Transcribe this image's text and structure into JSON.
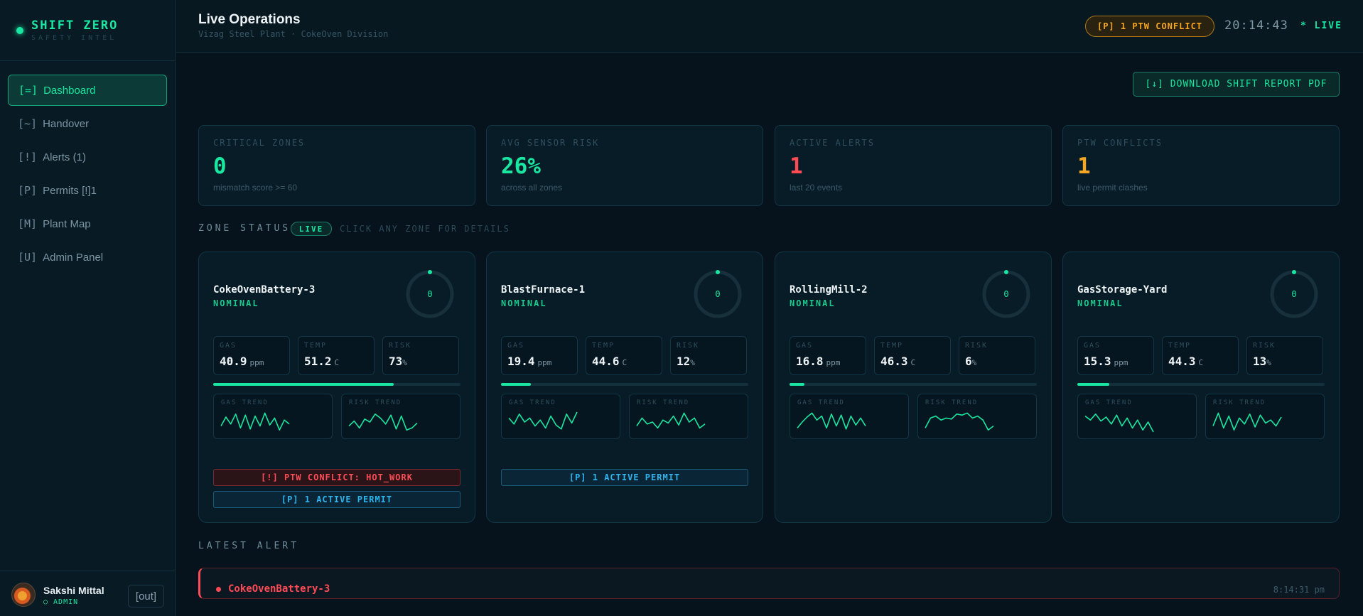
{
  "brand": {
    "title": "SHIFT ZERO",
    "subtitle": "SAFETY INTEL"
  },
  "sidebar": {
    "items": [
      {
        "icon": "[=]",
        "label": "Dashboard",
        "active": true
      },
      {
        "icon": "[~]",
        "label": "Handover"
      },
      {
        "icon": "[!]",
        "label": "Alerts (1)"
      },
      {
        "icon": "[P]",
        "label": "Permits [!]1"
      },
      {
        "icon": "[M]",
        "label": "Plant Map"
      },
      {
        "icon": "[U]",
        "label": "Admin Panel"
      }
    ]
  },
  "user": {
    "name": "Sakshi Mittal",
    "role": "○ ADMIN",
    "logout": "[out]"
  },
  "header": {
    "title": "Live Operations",
    "subtitle": "Vizag Steel Plant · CokeOven Division",
    "conflict_pill": "[P] 1 PTW CONFLICT",
    "clock": "20:14:43",
    "live": "* LIVE"
  },
  "download_label": "[↓] DOWNLOAD SHIFT REPORT PDF",
  "stats": [
    {
      "label": "CRITICAL ZONES",
      "value": "0",
      "note": "mismatch score >= 60",
      "color": "#19e6a0"
    },
    {
      "label": "AVG SENSOR RISK",
      "value": "26%",
      "note": "across all zones",
      "color": "#19e6a0"
    },
    {
      "label": "ACTIVE ALERTS",
      "value": "1",
      "note": "last 20 events",
      "color": "#ff4b55"
    },
    {
      "label": "PTW CONFLICTS",
      "value": "1",
      "note": "live permit clashes",
      "color": "#f5a623"
    }
  ],
  "zone_section": {
    "title": "ZONE STATUS",
    "badge": "LIVE",
    "hint": "CLICK ANY ZONE FOR DETAILS"
  },
  "metric_labels": {
    "gas": "GAS",
    "temp": "TEMP",
    "risk": "RISK",
    "gas_trend": "GAS TREND",
    "risk_trend": "RISK TREND"
  },
  "zones": [
    {
      "name": "CokeOvenBattery-3",
      "status": "NOMINAL",
      "score": "0",
      "gas": "40.9",
      "gas_unit": "ppm",
      "temp": "51.2",
      "temp_unit": "C",
      "risk": "73",
      "risk_unit": "%",
      "risk_fraction": 0.73,
      "gas_trend": [
        0.3,
        0.75,
        0.4,
        0.9,
        0.2,
        0.85,
        0.15,
        0.8,
        0.3,
        0.95,
        0.35,
        0.7,
        0.1,
        0.6,
        0.4
      ],
      "risk_trend": [
        0.3,
        0.55,
        0.2,
        0.65,
        0.5,
        0.9,
        0.7,
        0.4,
        0.85,
        0.15,
        0.8,
        0.1,
        0.2,
        0.45
      ],
      "tags": [
        {
          "text": "[!] PTW CONFLICT: HOT_WORK",
          "kind": "red"
        },
        {
          "text": "[P] 1 ACTIVE PERMIT",
          "kind": "blue"
        }
      ]
    },
    {
      "name": "BlastFurnace-1",
      "status": "NOMINAL",
      "score": "0",
      "gas": "19.4",
      "gas_unit": "ppm",
      "temp": "44.6",
      "temp_unit": "C",
      "risk": "12",
      "risk_unit": "%",
      "risk_fraction": 0.12,
      "gas_trend": [
        0.7,
        0.4,
        0.9,
        0.5,
        0.7,
        0.3,
        0.6,
        0.2,
        0.8,
        0.35,
        0.15,
        0.9,
        0.45,
        1.0
      ],
      "risk_trend": [
        0.3,
        0.7,
        0.4,
        0.5,
        0.2,
        0.6,
        0.45,
        0.8,
        0.35,
        0.95,
        0.5,
        0.7,
        0.2,
        0.4
      ],
      "tags": [
        {
          "text": "[P] 1 ACTIVE PERMIT",
          "kind": "blue"
        }
      ]
    },
    {
      "name": "RollingMill-2",
      "status": "NOMINAL",
      "score": "0",
      "gas": "16.8",
      "gas_unit": "ppm",
      "temp": "46.3",
      "temp_unit": "C",
      "risk": "6",
      "risk_unit": "%",
      "risk_fraction": 0.06,
      "gas_trend": [
        0.2,
        0.5,
        0.75,
        0.95,
        0.6,
        0.8,
        0.2,
        0.9,
        0.3,
        0.85,
        0.15,
        0.8,
        0.35,
        0.7,
        0.3
      ],
      "risk_trend": [
        0.2,
        0.7,
        0.8,
        0.6,
        0.7,
        0.65,
        0.9,
        0.85,
        0.95,
        0.7,
        0.8,
        0.6,
        0.1,
        0.3
      ],
      "tags": []
    },
    {
      "name": "GasStorage-Yard",
      "status": "NOMINAL",
      "score": "0",
      "gas": "15.3",
      "gas_unit": "ppm",
      "temp": "44.3",
      "temp_unit": "C",
      "risk": "13",
      "risk_unit": "%",
      "risk_fraction": 0.13,
      "gas_trend": [
        0.8,
        0.6,
        0.9,
        0.55,
        0.75,
        0.4,
        0.85,
        0.3,
        0.7,
        0.2,
        0.6,
        0.1,
        0.5,
        0.0
      ],
      "risk_trend": [
        0.3,
        0.95,
        0.2,
        0.8,
        0.1,
        0.7,
        0.4,
        0.9,
        0.25,
        0.85,
        0.45,
        0.6,
        0.3,
        0.75
      ],
      "tags": []
    }
  ],
  "latest_alert": {
    "title": "LATEST ALERT",
    "zone": "CokeOvenBattery-3",
    "time": "8:14:31 pm"
  },
  "colors": {
    "accent": "#19e6a0",
    "danger": "#ff4b55",
    "warning": "#f5a623",
    "info": "#2fb4ee"
  }
}
